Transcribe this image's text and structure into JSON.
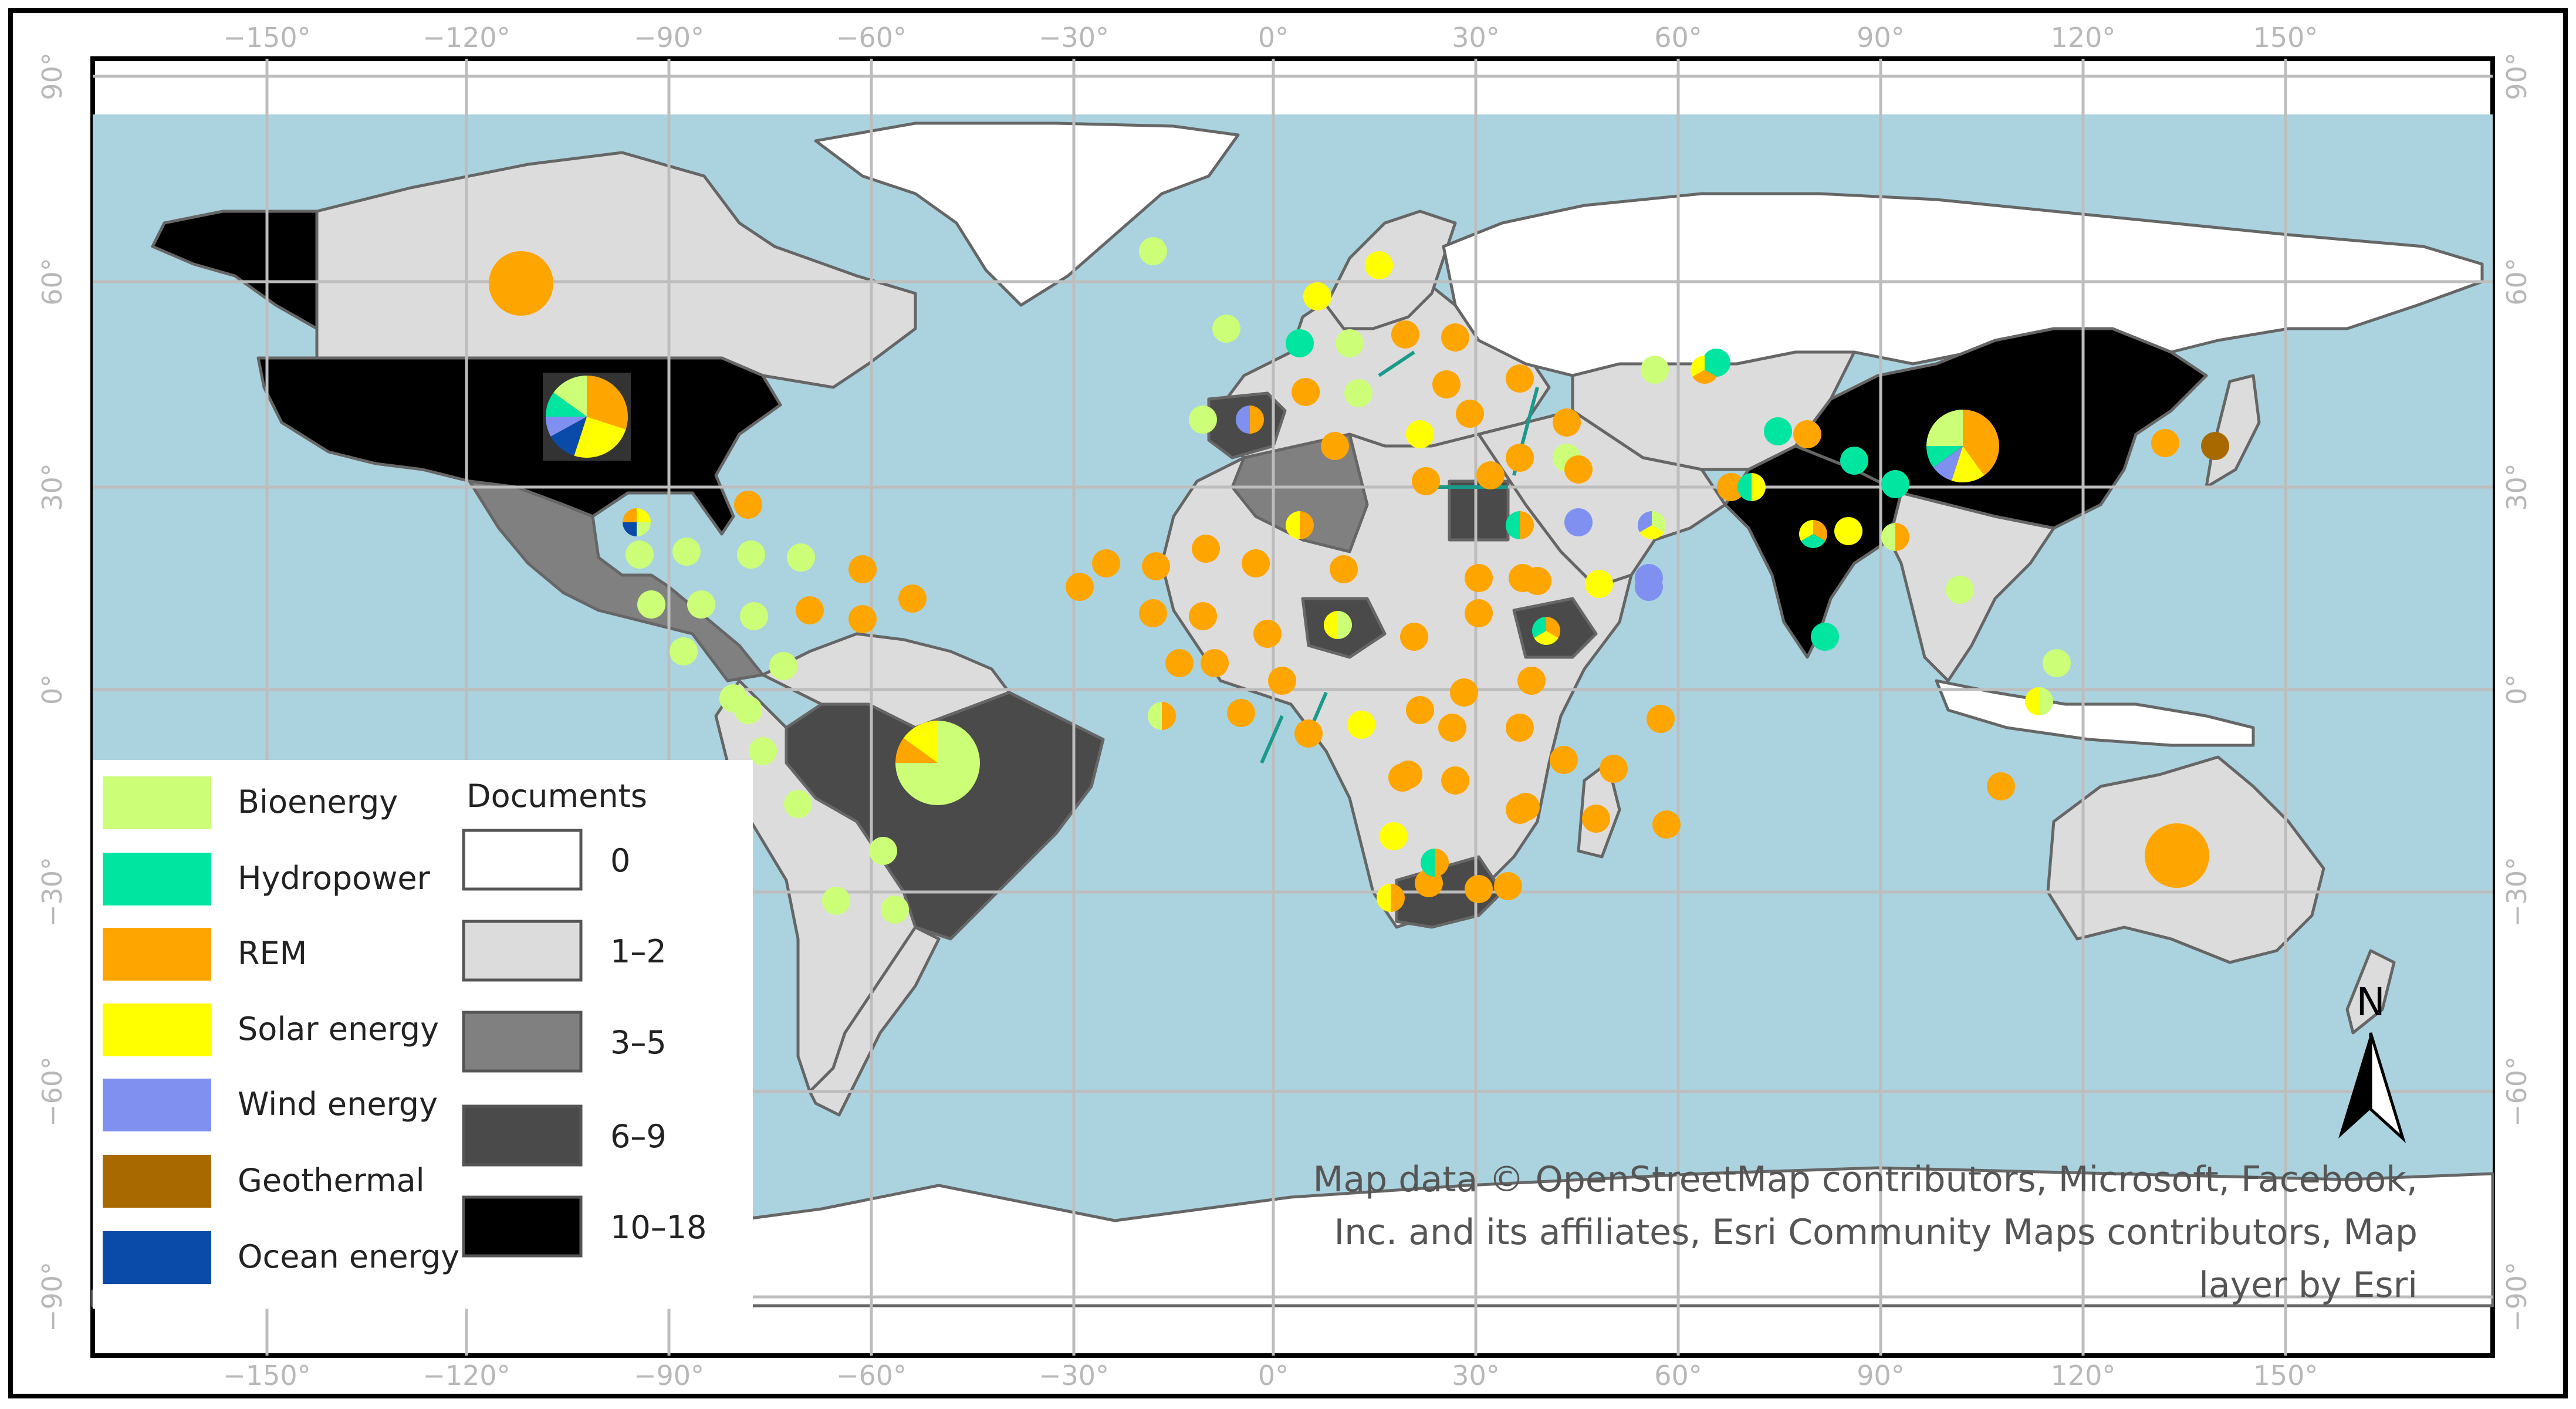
{
  "graticule": {
    "lon_labels": [
      "−150°",
      "−120°",
      "−90°",
      "−60°",
      "−30°",
      "0°",
      "30°",
      "60°",
      "90°",
      "120°",
      "150°"
    ],
    "lat_labels": [
      "90°",
      "60°",
      "30°",
      "0°",
      "−30°",
      "−60°",
      "−90°"
    ]
  },
  "legend": {
    "energy_types": [
      {
        "label": "Bioenergy",
        "color": "#ccff77"
      },
      {
        "label": "Hydropower",
        "color": "#00e5a0"
      },
      {
        "label": "REM",
        "color": "#ffa500"
      },
      {
        "label": "Solar energy",
        "color": "#ffff00"
      },
      {
        "label": "Wind energy",
        "color": "#8090f0"
      },
      {
        "label": "Geothermal",
        "color": "#a86a00"
      },
      {
        "label": "Ocean energy",
        "color": "#0a4aa8"
      }
    ],
    "documents_title": "Documents",
    "documents_classes": [
      {
        "label": "0",
        "color": "#ffffff"
      },
      {
        "label": "1–2",
        "color": "#dcdcdc"
      },
      {
        "label": "3–5",
        "color": "#808080"
      },
      {
        "label": "6–9",
        "color": "#4a4a4a"
      },
      {
        "label": "10–18",
        "color": "#000000"
      }
    ]
  },
  "north_arrow": {
    "label": "N"
  },
  "attribution": [
    "Map data © OpenStreetMap contributors, Microsoft, Facebook,",
    "Inc. and its affiliates, Esri Community Maps contributors, Map",
    "layer by Esri"
  ],
  "colors": {
    "ocean": "#aad3df",
    "border": "#666666",
    "grid": "#bdbdbd"
  }
}
